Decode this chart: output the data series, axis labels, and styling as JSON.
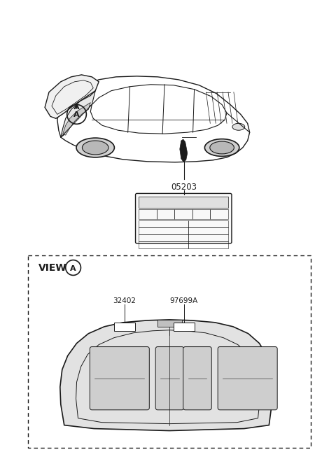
{
  "bg_color": "#ffffff",
  "line_color": "#1a1a1a",
  "car_label_A": "A",
  "part_number_pillar": "05203",
  "part_number_1": "32402",
  "part_number_2": "97699A",
  "view_label": "VIEW",
  "view_circle_label": "A"
}
